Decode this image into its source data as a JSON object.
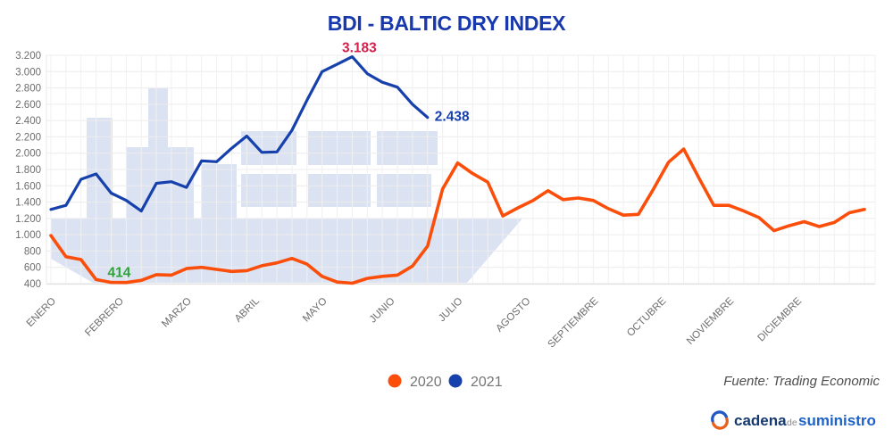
{
  "chart_data": {
    "type": "line",
    "title": "BDI - BALTIC DRY INDEX",
    "xlabel": "",
    "ylabel": "",
    "ylim": [
      400,
      3200
    ],
    "grid": true,
    "legend_position": "bottom-center",
    "x_unit": "weeks (Jan-Dec)",
    "months": [
      "ENERO",
      "FEBRERO",
      "MARZO",
      "ABRIL",
      "MAYO",
      "JUNIO",
      "JULIO",
      "AGOSTO",
      "SEPTIEMBRE",
      "OCTUBRE",
      "NOVIEMBRE",
      "DICIEMBRE"
    ],
    "y_tick_values": [
      400,
      600,
      800,
      1000,
      1200,
      1400,
      1600,
      1800,
      2000,
      2200,
      2400,
      2600,
      2800,
      3000,
      3200
    ],
    "y_tick_labels": [
      "400",
      "600",
      "800",
      "1.000",
      "1.200",
      "1.400",
      "1.600",
      "1.800",
      "2.000",
      "2.200",
      "2.400",
      "2.600",
      "2.800",
      "3.000",
      "3.200"
    ],
    "series": [
      {
        "name": "2020",
        "color": "#fb4e0b",
        "values": [
          990,
          730,
          695,
          450,
          415,
          414,
          440,
          510,
          505,
          585,
          600,
          575,
          550,
          560,
          620,
          655,
          710,
          640,
          490,
          420,
          405,
          465,
          490,
          505,
          615,
          860,
          1560,
          1880,
          1750,
          1645,
          1230,
          1330,
          1420,
          1540,
          1430,
          1450,
          1420,
          1320,
          1240,
          1250,
          1560,
          1890,
          2050,
          1700,
          1360,
          1360,
          1290,
          1210,
          1050,
          1110,
          1160,
          1100,
          1150,
          1270,
          1310
        ]
      },
      {
        "name": "2021",
        "color": "#1641ad",
        "values": [
          1310,
          1360,
          1680,
          1745,
          1510,
          1420,
          1290,
          1630,
          1650,
          1580,
          1905,
          1895,
          2060,
          2210,
          2010,
          2015,
          2280,
          2650,
          3000,
          3090,
          3183,
          2975,
          2870,
          2810,
          2600,
          2438
        ]
      }
    ],
    "annotations": [
      {
        "text": "3.183",
        "value": 3183,
        "series": "2021",
        "index": 20,
        "color": "#d4204c"
      },
      {
        "text": "2.438",
        "value": 2438,
        "series": "2021",
        "index": 25,
        "color": "#1641ad"
      },
      {
        "text": "414",
        "value": 414,
        "series": "2020",
        "index": 5,
        "color": "#2fa23a"
      }
    ]
  },
  "footer": {
    "source": "Fuente: Trading Economic",
    "logo": {
      "part1": "cadena",
      "part2": "de",
      "part3": "suministro"
    }
  },
  "icons": {
    "logo_mark": "circular-arrows"
  },
  "colors": {
    "title": "#1838ad",
    "watermark": "#dbe2f2",
    "grid": "#ececec",
    "axis_line": "#e0e0e0",
    "axis_text": "#6d6d6d",
    "legend_text": "#757575",
    "source_text": "#4d4d4d",
    "logo_navy": "#16396f",
    "logo_blue": "#1d62c9",
    "logo_icon_blue": "#2458c5",
    "logo_icon_orange": "#e8611c"
  }
}
